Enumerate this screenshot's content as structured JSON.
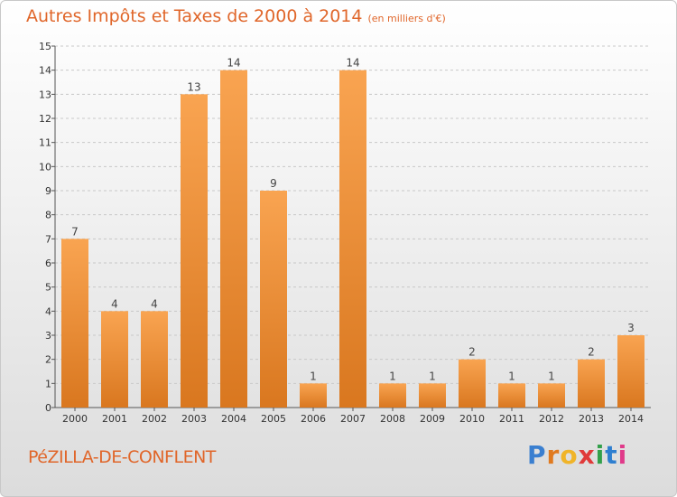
{
  "title": {
    "main": "Autres Impôts et Taxes de 2000 à 2014",
    "unit": "(en milliers d'€)"
  },
  "commune": "PéZILLA-DE-CONFLENT",
  "logo": {
    "text": "Proxiti",
    "icon": "proxiti-logo"
  },
  "colors": {
    "title": "#e0662a",
    "bar_light": "#f9a451",
    "bar_dark": "#d9771f",
    "axis": "#555555",
    "grid": "#c8c8c8"
  },
  "chart_data": {
    "type": "bar",
    "categories": [
      "2000",
      "2001",
      "2002",
      "2003",
      "2004",
      "2005",
      "2006",
      "2007",
      "2008",
      "2009",
      "2010",
      "2011",
      "2012",
      "2013",
      "2014"
    ],
    "values": [
      7,
      4,
      4,
      13,
      14,
      9,
      1,
      14,
      1,
      1,
      2,
      1,
      1,
      2,
      3
    ],
    "data_labels": [
      "7",
      "4",
      "4",
      "13",
      "14",
      "9",
      "1",
      "14",
      "1",
      "1",
      "2",
      "1",
      "1",
      "2",
      "3"
    ],
    "ylim": [
      0,
      15
    ],
    "yticks": [
      0,
      1,
      2,
      3,
      4,
      5,
      6,
      7,
      8,
      9,
      10,
      11,
      12,
      13,
      14,
      15
    ],
    "grid": "horizontal dashed",
    "legend": "none"
  }
}
